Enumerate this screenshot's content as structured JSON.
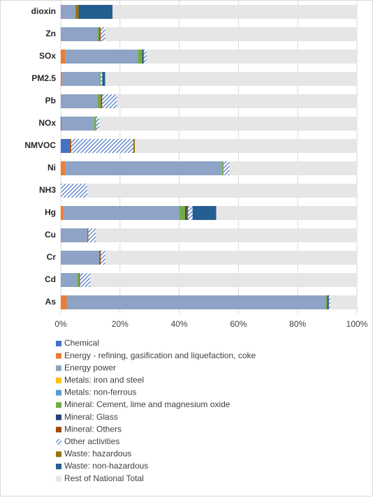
{
  "chart_data": {
    "type": "stacked_barh",
    "categories": [
      "dioxin",
      "Zn",
      "SOx",
      "PM2.5",
      "Pb",
      "NOx",
      "NMVOC",
      "Ni",
      "NH3",
      "Hg",
      "Cu",
      "Cr",
      "Cd",
      "As"
    ],
    "series": [
      {
        "name": "Chemical",
        "color": "#4472c4",
        "values": [
          0,
          0,
          0,
          0,
          0,
          0.3,
          3,
          0,
          0,
          0,
          0,
          0,
          0,
          0
        ]
      },
      {
        "name": "Energy - refining, gasification and liquefaction, coke",
        "color": "#ed7d31",
        "values": [
          0,
          0,
          1.5,
          0.5,
          0,
          0,
          0,
          1.5,
          0,
          1,
          0,
          0,
          0,
          2
        ]
      },
      {
        "name": "Energy power",
        "color": "#8ea3c5",
        "values": [
          5,
          12.5,
          24.5,
          12.5,
          12.5,
          11,
          0,
          53,
          0,
          39,
          9,
          13,
          5.5,
          87.5
        ]
      },
      {
        "name": "Metals: iron and steel",
        "color": "#ffc000",
        "values": [
          0,
          0,
          0,
          0,
          0,
          0,
          0,
          0,
          0,
          0,
          0,
          0,
          0,
          0
        ]
      },
      {
        "name": "Metals: non-ferrous",
        "color": "#5b9bd5",
        "values": [
          0,
          0,
          0,
          0,
          0,
          0,
          0,
          0,
          0,
          0,
          0,
          0,
          0,
          0
        ]
      },
      {
        "name": "Mineral: Cement, lime and magnesium oxide",
        "color": "#70ad47",
        "values": [
          0,
          0.5,
          1.5,
          0.5,
          1,
          0.7,
          0,
          0.5,
          0,
          2,
          0,
          0,
          0.7,
          0.5
        ]
      },
      {
        "name": "Mineral: Glass",
        "color": "#264478",
        "values": [
          0,
          0,
          0.5,
          0,
          0,
          0,
          0,
          0,
          0,
          0.5,
          0,
          0,
          0,
          0.5
        ]
      },
      {
        "name": "Mineral: Others",
        "color": "#9e480e",
        "values": [
          0,
          0.5,
          0,
          0,
          0.5,
          0,
          0.5,
          0,
          0,
          0.5,
          0.3,
          0.5,
          0.3,
          0
        ]
      },
      {
        "name": "Other activities",
        "color": "#4472c4",
        "hatch": true,
        "values": [
          0,
          1.5,
          1,
          0.5,
          5,
          1,
          21,
          2,
          9,
          1.5,
          2.5,
          1.5,
          3.5,
          0.5
        ]
      },
      {
        "name": "Waste: hazardous",
        "color": "#997300",
        "values": [
          1,
          0,
          0,
          0,
          0,
          0,
          0.5,
          0,
          0,
          0,
          0,
          0,
          0,
          0
        ]
      },
      {
        "name": "Waste: non-hazardous",
        "color": "#255e91",
        "values": [
          11.5,
          0,
          0,
          1,
          0,
          0,
          0,
          0,
          0,
          8,
          0,
          0,
          0,
          0
        ]
      },
      {
        "name": "Rest of National Total",
        "color": "#e7e6e6",
        "values": [
          82.5,
          85,
          71,
          85,
          81,
          87,
          75,
          43,
          91,
          47.5,
          88.2,
          85,
          90,
          9
        ]
      }
    ],
    "xlim": [
      0,
      100
    ],
    "xticks": [
      {
        "value": 0,
        "label": "0%"
      },
      {
        "value": 20,
        "label": "20%"
      },
      {
        "value": 40,
        "label": "40%"
      },
      {
        "value": 60,
        "label": "60%"
      },
      {
        "value": 80,
        "label": "80%"
      },
      {
        "value": 100,
        "label": "100%"
      }
    ],
    "grid": true,
    "legend": "bottom"
  }
}
